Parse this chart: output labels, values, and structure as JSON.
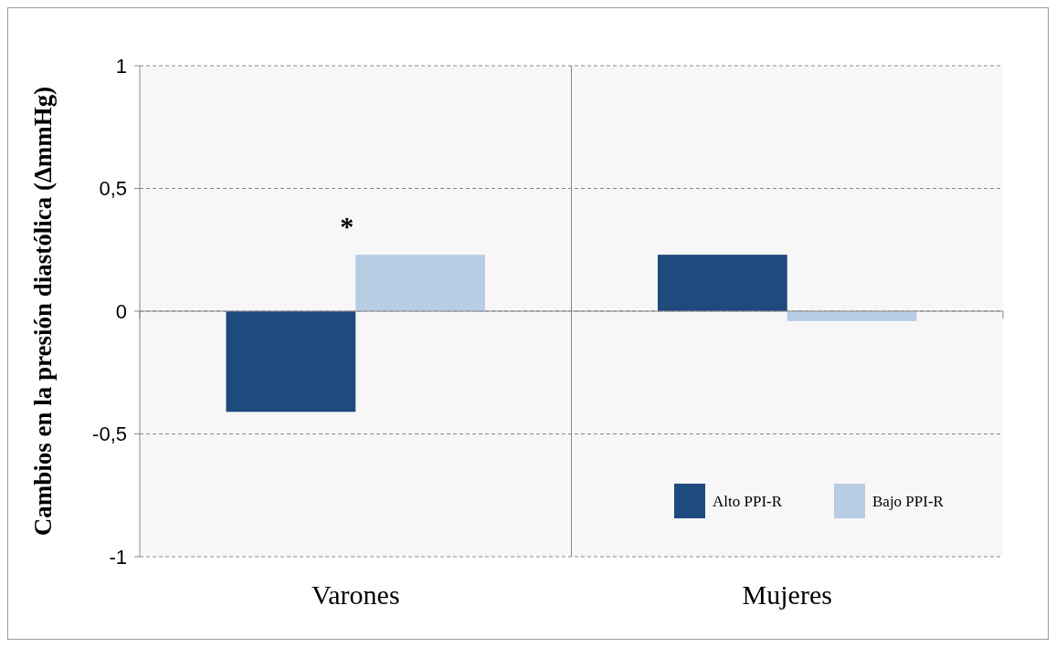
{
  "chart_data": {
    "type": "bar",
    "ylabel": "Cambios en la presión diastólica (ΔmmHg)",
    "categories": [
      "Varones",
      "Mujeres"
    ],
    "series": [
      {
        "name": "Alto PPI-R",
        "color": "#1f4a7e",
        "values": [
          -0.41,
          0.23
        ]
      },
      {
        "name": "Bajo PPI-R",
        "color": "#b8cce4",
        "values": [
          0.23,
          -0.04
        ]
      }
    ],
    "ylim": [
      -1,
      1
    ],
    "yticks": [
      -1,
      {
        "value": -0.5,
        "label": "-0,5"
      },
      0,
      {
        "value": 0.5,
        "label": "0,5"
      },
      1
    ],
    "grid": "y",
    "legend": "bottom right",
    "annotations": [
      "*"
    ]
  }
}
